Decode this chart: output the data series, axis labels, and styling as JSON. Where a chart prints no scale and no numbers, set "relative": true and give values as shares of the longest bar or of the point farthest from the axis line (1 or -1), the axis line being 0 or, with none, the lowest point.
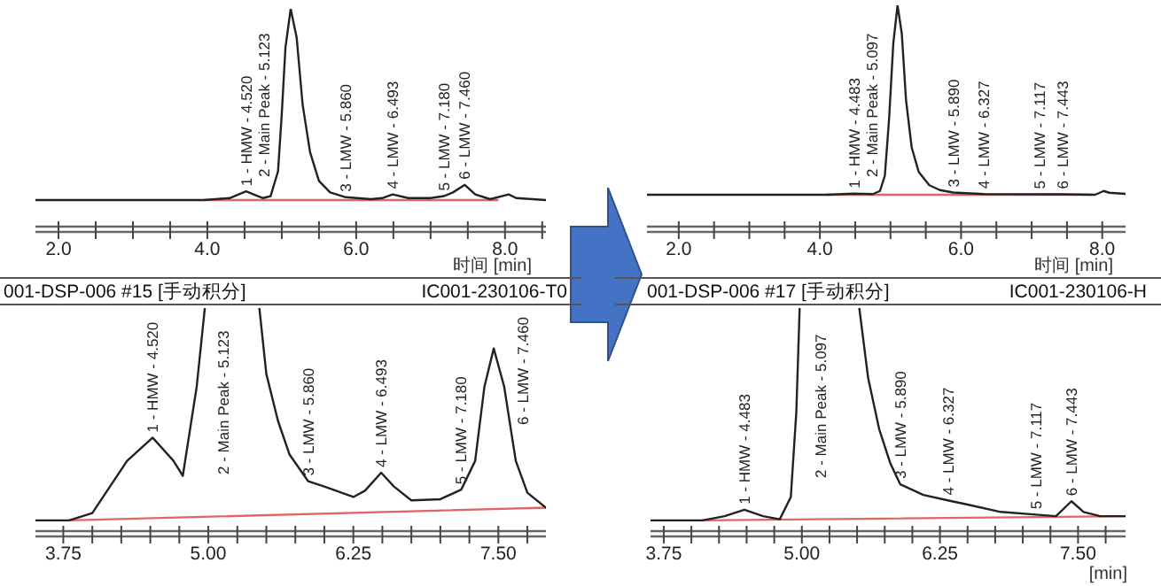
{
  "chart_data": [
    {
      "type": "line",
      "relative": true,
      "xlabel": "时间 [min]",
      "tick_labels": "x",
      "xlim": [
        1.69,
        8.55
      ],
      "xticks": [
        {
          "value": 2,
          "label": "2.0"
        },
        {
          "value": 2.5,
          "label": null
        },
        {
          "value": 3,
          "label": null
        },
        {
          "value": 3.5,
          "label": null
        },
        {
          "value": 4,
          "label": "4.0"
        },
        {
          "value": 4.5,
          "label": null
        },
        {
          "value": 5,
          "label": null
        },
        {
          "value": 5.5,
          "label": null
        },
        {
          "value": 6,
          "label": "6.0"
        },
        {
          "value": 6.5,
          "label": null
        },
        {
          "value": 7,
          "label": null
        },
        {
          "value": 7.5,
          "label": null
        },
        {
          "value": 8,
          "label": "8.0"
        },
        {
          "value": 8.5,
          "label": null
        }
      ],
      "series": [
        {
          "color": "#222222",
          "x": [
            1.69,
            3.95,
            4.3,
            4.52,
            4.68,
            4.75,
            4.85,
            4.95,
            5.0,
            5.05,
            5.12,
            5.2,
            5.28,
            5.38,
            5.5,
            5.65,
            5.86,
            6.2,
            6.35,
            6.49,
            6.7,
            7.0,
            7.18,
            7.3,
            7.46,
            7.6,
            7.8,
            8.05,
            8.15,
            8.55
          ],
          "values": [
            0.122,
            0.122,
            0.131,
            0.162,
            0.14,
            0.131,
            0.14,
            0.254,
            0.517,
            0.824,
            1,
            0.868,
            0.561,
            0.342,
            0.21,
            0.157,
            0.135,
            0.126,
            0.131,
            0.148,
            0.131,
            0.131,
            0.14,
            0.157,
            0.192,
            0.148,
            0.126,
            0.148,
            0.131,
            0.122
          ]
        },
        {
          "color": "#e06666",
          "x": [
            3.95,
            7.9
          ],
          "values": [
            0.122,
            0.122
          ]
        }
      ],
      "annotations": [
        {
          "text": "1 - HMW - 4.520",
          "x": 4.52,
          "y": 0.162
        },
        "2 - Main Peak - 5.123",
        {
          "text": "3 - LMW - 5.860",
          "x": 5.86,
          "y": 0.135
        },
        {
          "text": "4 - LMW - 6.493",
          "x": 6.493,
          "y": 0.148
        },
        {
          "text": "5 - LMW - 7.180",
          "x": 7.18,
          "y": 0.14
        },
        {
          "text": "6 - LMW - 7.460",
          "x": 7.46,
          "y": 0.192
        }
      ]
    },
    {
      "type": "line",
      "relative": true,
      "xlabel": "时间 [min]",
      "tick_labels": "x",
      "xlim": [
        1.55,
        8.33
      ],
      "xticks": [
        {
          "value": 2,
          "label": "2.0"
        },
        {
          "value": 2.5,
          "label": null
        },
        {
          "value": 3,
          "label": null
        },
        {
          "value": 3.5,
          "label": null
        },
        {
          "value": 4,
          "label": "4.0"
        },
        {
          "value": 4.5,
          "label": null
        },
        {
          "value": 5,
          "label": null
        },
        {
          "value": 5.5,
          "label": null
        },
        {
          "value": 6,
          "label": "6.0"
        },
        {
          "value": 6.5,
          "label": null
        },
        {
          "value": 7,
          "label": null
        },
        {
          "value": 7.5,
          "label": null
        },
        {
          "value": 8,
          "label": "8.0"
        }
      ],
      "series": [
        {
          "color": "#222222",
          "x": [
            1.55,
            4.1,
            4.48,
            4.75,
            4.85,
            4.92,
            4.98,
            5.04,
            5.1,
            5.16,
            5.22,
            5.3,
            5.4,
            5.55,
            5.7,
            5.89,
            6.33,
            7.12,
            7.44,
            7.9,
            8.02,
            8.1,
            8.33
          ],
          "values": [
            0.144,
            0.144,
            0.149,
            0.147,
            0.161,
            0.23,
            0.486,
            0.829,
            1,
            0.872,
            0.572,
            0.358,
            0.247,
            0.187,
            0.165,
            0.154,
            0.147,
            0.146,
            0.146,
            0.144,
            0.161,
            0.153,
            0.148
          ]
        },
        {
          "color": "#e06666",
          "x": [
            4.1,
            7.85
          ],
          "values": [
            0.144,
            0.144
          ]
        }
      ],
      "annotations": [
        {
          "text": "1 - HMW - 4.483",
          "x": 4.483,
          "y": 0.149
        },
        "2 - Main Peak - 5.097",
        {
          "text": "3 - LMW - 5.890",
          "x": 5.89,
          "y": 0.154
        },
        {
          "text": "4 - LMW - 6.327",
          "x": 6.327,
          "y": 0.147
        },
        {
          "text": "5 - LMW - 7.117",
          "x": 7.117,
          "y": 0.146
        },
        {
          "text": "6 - LMW - 7.443",
          "x": 7.443,
          "y": 0.146
        }
      ]
    },
    {
      "type": "line",
      "relative": true,
      "title": "001-DSP-006 #15 [手动积分]",
      "subtitle": "IC001-230106-T0",
      "tick_labels": "x",
      "xlim": [
        3.51,
        7.91
      ],
      "xticks": [
        {
          "value": 3.75,
          "label": "3.75"
        },
        {
          "value": 4,
          "label": null
        },
        {
          "value": 4.25,
          "label": null
        },
        {
          "value": 4.5,
          "label": null
        },
        {
          "value": 4.75,
          "label": null
        },
        {
          "value": 5,
          "label": "5.00"
        },
        {
          "value": 5.25,
          "label": null
        },
        {
          "value": 5.5,
          "label": null
        },
        {
          "value": 5.75,
          "label": null
        },
        {
          "value": 6,
          "label": null
        },
        {
          "value": 6.25,
          "label": "6.25"
        },
        {
          "value": 6.5,
          "label": null
        },
        {
          "value": 6.75,
          "label": null
        },
        {
          "value": 7,
          "label": null
        },
        {
          "value": 7.25,
          "label": null
        },
        {
          "value": 7.5,
          "label": "7.50"
        },
        {
          "value": 7.75,
          "label": null
        }
      ],
      "series": [
        {
          "color": "#222222",
          "x": [
            3.51,
            3.8,
            4.0,
            4.3,
            4.52,
            4.7,
            4.78,
            4.9,
            4.97,
            5.0,
            5.44,
            5.5,
            5.6,
            5.7,
            5.86,
            6.0,
            6.25,
            6.35,
            6.49,
            6.6,
            6.75,
            7.0,
            7.18,
            7.3,
            7.38,
            7.46,
            7.55,
            7.65,
            7.75,
            7.91
          ],
          "values": [
            0.048,
            0.048,
            0.081,
            0.315,
            0.419,
            0.315,
            0.248,
            0.648,
            1,
            null,
            1,
            0.705,
            0.495,
            0.343,
            0.224,
            0.2,
            0.153,
            0.181,
            0.262,
            0.2,
            0.138,
            0.143,
            0.186,
            0.315,
            0.648,
            0.819,
            0.648,
            0.315,
            0.172,
            0.105
          ]
        },
        {
          "color": "#e06666",
          "x": [
            3.8,
            7.91
          ],
          "values": [
            0.048,
            0.105
          ]
        }
      ],
      "annotations": [
        {
          "text": "1 - HMW - 4.520",
          "x": 4.52,
          "y": 0.419
        },
        "2 - Main Peak - 5.123",
        {
          "text": "3 - LMW - 5.860",
          "x": 5.86,
          "y": 0.224
        },
        {
          "text": "4 - LMW - 6.493",
          "x": 6.493,
          "y": 0.262
        },
        {
          "text": "5 - LMW - 7.180",
          "x": 7.18,
          "y": 0.186
        },
        "6 - LMW - 7.460"
      ]
    },
    {
      "type": "line",
      "relative": true,
      "title": "001-DSP-006 #17 [手动积分]",
      "subtitle": "IC001-230106-H",
      "xlabel": "[min]",
      "tick_labels": "x",
      "xlim": [
        3.63,
        7.93
      ],
      "xticks": [
        {
          "value": 3.75,
          "label": "3.75"
        },
        {
          "value": 4,
          "label": null
        },
        {
          "value": 4.25,
          "label": null
        },
        {
          "value": 4.5,
          "label": null
        },
        {
          "value": 4.75,
          "label": null
        },
        {
          "value": 5,
          "label": "5.00"
        },
        {
          "value": 5.25,
          "label": null
        },
        {
          "value": 5.5,
          "label": null
        },
        {
          "value": 5.75,
          "label": null
        },
        {
          "value": 6,
          "label": null
        },
        {
          "value": 6.25,
          "label": "6.25"
        },
        {
          "value": 6.5,
          "label": null
        },
        {
          "value": 6.75,
          "label": null
        },
        {
          "value": 7,
          "label": null
        },
        {
          "value": 7.25,
          "label": null
        },
        {
          "value": 7.5,
          "label": "7.50"
        },
        {
          "value": 7.75,
          "label": null
        }
      ],
      "series": [
        {
          "color": "#222222",
          "x": [
            3.63,
            4.1,
            4.3,
            4.48,
            4.65,
            4.8,
            4.9,
            4.95,
            4.98,
            5.0,
            5.52,
            5.6,
            5.7,
            5.8,
            5.89,
            6.1,
            6.33,
            6.5,
            6.8,
            7.12,
            7.3,
            7.44,
            7.55,
            7.7,
            7.93
          ],
          "values": [
            0.048,
            0.048,
            0.067,
            0.096,
            0.067,
            0.053,
            0.153,
            0.534,
            1,
            null,
            1,
            0.686,
            0.457,
            0.305,
            0.21,
            0.162,
            0.137,
            0.119,
            0.086,
            0.074,
            0.067,
            0.134,
            0.086,
            0.067,
            0.067
          ]
        },
        {
          "color": "#e06666",
          "x": [
            4.1,
            7.93
          ],
          "values": [
            0.048,
            0.067
          ]
        }
      ],
      "annotations": [
        {
          "text": "1 - HMW - 4.483",
          "x": 4.483,
          "y": 0.096
        },
        "2 - Main Peak - 5.097",
        {
          "text": "3 - LMW - 5.890",
          "x": 5.89,
          "y": 0.21
        },
        {
          "text": "4 - LMW - 6.327",
          "x": 6.327,
          "y": 0.137
        },
        {
          "text": "5 - LMW - 7.117",
          "x": 7.117,
          "y": 0.074
        },
        {
          "text": "6 - LMW - 7.443",
          "x": 7.443,
          "y": 0.134
        }
      ]
    }
  ]
}
